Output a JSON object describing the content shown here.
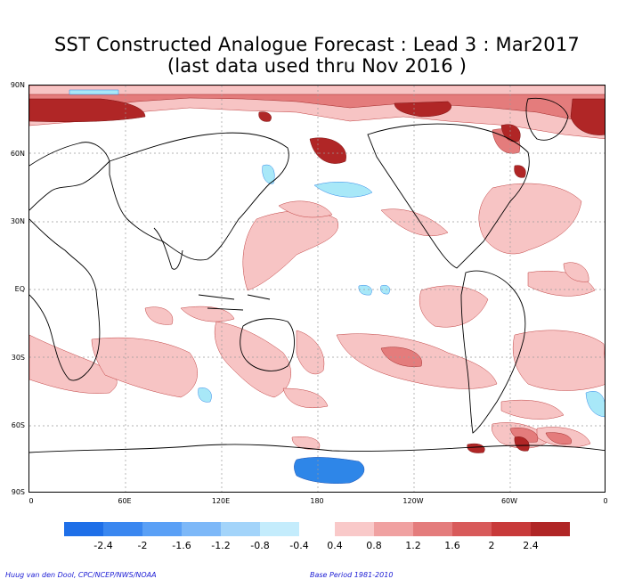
{
  "title": {
    "line1": "SST Constructed Analogue Forecast : Lead 3 : Mar2017",
    "line2": "(last data used thru Nov 2016 )"
  },
  "map": {
    "lat_labels": [
      "90N",
      "60N",
      "30N",
      "EQ",
      "30S",
      "60S",
      "90S"
    ],
    "lon_labels": [
      "0",
      "60E",
      "120E",
      "180",
      "120W",
      "60W",
      "0"
    ],
    "colors": {
      "land_outline": "#000000",
      "grid": "#9a9a9a",
      "warm_1": "#f7c4c4",
      "warm_2": "#f0a0a0",
      "warm_3": "#e47c7c",
      "warm_4": "#d85858",
      "warm_5": "#c83434",
      "warm_6": "#b02222",
      "cool_1": "#a8e8f8",
      "cool_2": "#68b8f8",
      "cool_3": "#2e86e8"
    }
  },
  "colorbar": {
    "negative_colors": [
      "#1e6fe8",
      "#3a87f0",
      "#5aa0f6",
      "#7db8f8",
      "#a3d4fa",
      "#c4ecfc"
    ],
    "positive_colors": [
      "#f9c9c9",
      "#f0a1a1",
      "#e47c7c",
      "#d85a5a",
      "#c83a3a",
      "#b02626"
    ],
    "labels": [
      "-2.4",
      "-2",
      "-1.6",
      "-1.2",
      "-0.8",
      "-0.4",
      "0.4",
      "0.8",
      "1.2",
      "1.6",
      "2",
      "2.4"
    ]
  },
  "credits": {
    "left": "Huug van den Dool, CPC/NCEP/NWS/NOAA",
    "right": "Base Period 1981-2010"
  }
}
